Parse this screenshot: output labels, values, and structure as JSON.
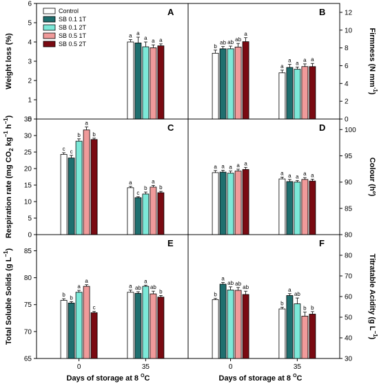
{
  "series_meta": [
    {
      "name": "Control",
      "color": "#ffffff"
    },
    {
      "name": "SB 0.1 1T",
      "color": "#1f6f6f"
    },
    {
      "name": "SB 0.1 2T",
      "color": "#7ce8d8"
    },
    {
      "name": "SB 0.5 1T",
      "color": "#f09a9a"
    },
    {
      "name": "SB 0.5 2T",
      "color": "#7a0a12"
    }
  ],
  "x_axis": {
    "label_main": "Days of storage at 8 ",
    "label_sup": "O",
    "label_end": "C"
  },
  "chart_data": [
    {
      "panel": "A",
      "type": "bar",
      "categories": [
        "0",
        "35"
      ],
      "ylabel": "Weight loss (%)",
      "ylim": [
        0,
        6
      ],
      "yticks": [
        0,
        1,
        2,
        3,
        4,
        5,
        6
      ],
      "series": [
        {
          "name": "Control",
          "values": [
            null,
            4.0
          ],
          "errors": [
            null,
            0.12
          ],
          "letters": [
            null,
            "a"
          ]
        },
        {
          "name": "SB 0.1 1T",
          "values": [
            null,
            3.95
          ],
          "errors": [
            null,
            0.3
          ],
          "letters": [
            null,
            "a"
          ]
        },
        {
          "name": "SB 0.1 2T",
          "values": [
            null,
            3.75
          ],
          "errors": [
            null,
            0.25
          ],
          "letters": [
            null,
            "a"
          ]
        },
        {
          "name": "SB 0.5 1T",
          "values": [
            null,
            3.7
          ],
          "errors": [
            null,
            0.15
          ],
          "letters": [
            null,
            "a"
          ]
        },
        {
          "name": "SB 0.5 2T",
          "values": [
            null,
            3.8
          ],
          "errors": [
            null,
            0.1
          ],
          "letters": [
            null,
            "a"
          ]
        }
      ]
    },
    {
      "panel": "B",
      "type": "bar",
      "categories": [
        "0",
        "35"
      ],
      "ylabel": "Firmness (N mm",
      "ylabel_sup": "-1",
      "ylabel_end": ")",
      "ylim": [
        0,
        13
      ],
      "yticks": [
        0,
        2,
        4,
        6,
        8,
        10,
        12
      ],
      "series": [
        {
          "name": "Control",
          "values": [
            7.4,
            5.2
          ],
          "errors": [
            0.35,
            0.3
          ],
          "letters": [
            "b",
            "a"
          ]
        },
        {
          "name": "SB 0.1 1T",
          "values": [
            7.9,
            5.8
          ],
          "errors": [
            0.25,
            0.35
          ],
          "letters": [
            "ab",
            "a"
          ]
        },
        {
          "name": "SB 0.1 2T",
          "values": [
            7.9,
            5.6
          ],
          "errors": [
            0.3,
            0.25
          ],
          "letters": [
            "ab",
            "a"
          ]
        },
        {
          "name": "SB 0.5 1T",
          "values": [
            8.1,
            5.9
          ],
          "errors": [
            0.4,
            0.3
          ],
          "letters": [
            "ab",
            "a"
          ]
        },
        {
          "name": "SB 0.5 2T",
          "values": [
            8.7,
            5.9
          ],
          "errors": [
            0.45,
            0.35
          ],
          "letters": [
            "a",
            "a"
          ]
        }
      ]
    },
    {
      "panel": "C",
      "type": "bar",
      "categories": [
        "0",
        "35"
      ],
      "ylabel": "Respiration rate (mg CO",
      "ylabel_sub": "2",
      "ylabel_end": " kg",
      "ylabel_sup": "−1",
      "ylabel_end2": " h",
      "ylabel_sup2": "−1",
      "ylabel_close": ")",
      "ylim": [
        0,
        35
      ],
      "yticks": [
        0,
        5,
        10,
        15,
        20,
        25,
        30,
        35
      ],
      "series": [
        {
          "name": "Control",
          "values": [
            24.3,
            14.2
          ],
          "errors": [
            0.5,
            0.4
          ],
          "letters": [
            "c",
            "a"
          ]
        },
        {
          "name": "SB 0.1 1T",
          "values": [
            23.2,
            11.2
          ],
          "errors": [
            0.8,
            0.3
          ],
          "letters": [
            "c",
            "c"
          ]
        },
        {
          "name": "SB 0.1 2T",
          "values": [
            28.3,
            12.3
          ],
          "errors": [
            0.7,
            0.6
          ],
          "letters": [
            "b",
            "b"
          ]
        },
        {
          "name": "SB 0.5 1T",
          "values": [
            31.7,
            14.4
          ],
          "errors": [
            0.9,
            0.5
          ],
          "letters": [
            "a",
            "a"
          ]
        },
        {
          "name": "SB 0.5 2T",
          "values": [
            28.8,
            12.7
          ],
          "errors": [
            0.4,
            0.4
          ],
          "letters": [
            "b",
            "b"
          ]
        }
      ]
    },
    {
      "panel": "D",
      "type": "bar",
      "categories": [
        "0",
        "35"
      ],
      "ylabel": "Colour (hº)",
      "ylim": [
        80,
        102
      ],
      "yticks": [
        80,
        85,
        90,
        95,
        100
      ],
      "series": [
        {
          "name": "Control",
          "values": [
            91.8,
            90.6
          ],
          "errors": [
            0.4,
            0.35
          ],
          "letters": [
            "a",
            "a"
          ]
        },
        {
          "name": "SB 0.1 1T",
          "values": [
            91.9,
            90.1
          ],
          "errors": [
            0.35,
            0.4
          ],
          "letters": [
            "a",
            "a"
          ]
        },
        {
          "name": "SB 0.1 2T",
          "values": [
            91.7,
            90.0
          ],
          "errors": [
            0.4,
            0.3
          ],
          "letters": [
            "a",
            "a"
          ]
        },
        {
          "name": "SB 0.5 1T",
          "values": [
            92.1,
            90.5
          ],
          "errors": [
            0.35,
            0.35
          ],
          "letters": [
            "a",
            "a"
          ]
        },
        {
          "name": "SB 0.5 2T",
          "values": [
            92.4,
            90.2
          ],
          "errors": [
            0.4,
            0.35
          ],
          "letters": [
            "a",
            "a"
          ]
        }
      ]
    },
    {
      "panel": "E",
      "type": "bar",
      "categories": [
        "0",
        "35"
      ],
      "ylabel": "Total Soluble Solids (g L",
      "ylabel_sup": "−1",
      "ylabel_end": ")",
      "ylim": [
        65,
        88
      ],
      "yticks": [
        65,
        70,
        75,
        80,
        85
      ],
      "series": [
        {
          "name": "Control",
          "values": [
            75.8,
            77.3
          ],
          "errors": [
            0.3,
            0.4
          ],
          "letters": [
            "b",
            "a"
          ]
        },
        {
          "name": "SB 0.1 1T",
          "values": [
            75.3,
            77.1
          ],
          "errors": [
            0.25,
            0.3
          ],
          "letters": [
            "b",
            "ab"
          ]
        },
        {
          "name": "SB 0.1 2T",
          "values": [
            77.3,
            78.4
          ],
          "errors": [
            0.35,
            0.2
          ],
          "letters": [
            "a",
            "a"
          ]
        },
        {
          "name": "SB 0.5 1T",
          "values": [
            78.4,
            77.0
          ],
          "errors": [
            0.3,
            0.5
          ],
          "letters": [
            "a",
            "ab"
          ]
        },
        {
          "name": "SB 0.5 2T",
          "values": [
            73.5,
            76.4
          ],
          "errors": [
            0.25,
            0.3
          ],
          "letters": [
            "c",
            "b"
          ]
        }
      ]
    },
    {
      "panel": "F",
      "type": "bar",
      "categories": [
        "0",
        "35"
      ],
      "ylabel": "Titratable Acidity (g L",
      "ylabel_sup": "−1",
      "ylabel_end": ")",
      "ylim": [
        30,
        90
      ],
      "yticks": [
        30,
        40,
        50,
        60,
        70,
        80
      ],
      "series": [
        {
          "name": "Control",
          "values": [
            58.5,
            54.0
          ],
          "errors": [
            0.6,
            0.8
          ],
          "letters": [
            "b",
            "b"
          ]
        },
        {
          "name": "SB 0.1 1T",
          "values": [
            66.0,
            60.5
          ],
          "errors": [
            0.8,
            0.9
          ],
          "letters": [
            "a",
            "a"
          ]
        },
        {
          "name": "SB 0.1 2T",
          "values": [
            63.2,
            56.5
          ],
          "errors": [
            1.5,
            2.8
          ],
          "letters": [
            "ab",
            "ab"
          ]
        },
        {
          "name": "SB 0.5 1T",
          "values": [
            63.0,
            50.5
          ],
          "errors": [
            1.4,
            2.0
          ],
          "letters": [
            "ab",
            "b"
          ]
        },
        {
          "name": "SB 0.5 2T",
          "values": [
            61.0,
            51.5
          ],
          "errors": [
            1.6,
            1.2
          ],
          "letters": [
            "ab",
            "b"
          ]
        }
      ]
    }
  ]
}
